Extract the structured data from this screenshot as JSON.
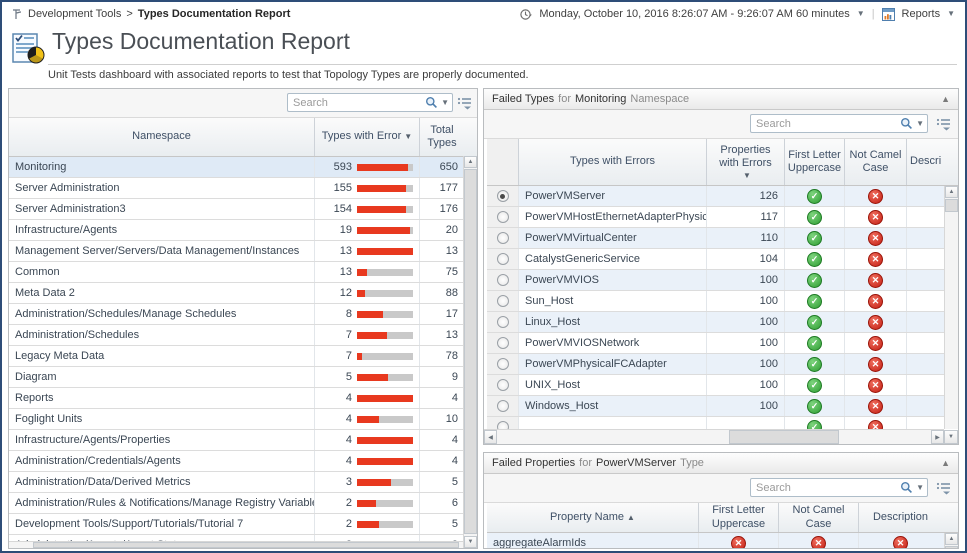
{
  "icons": {
    "sort_desc": "▼",
    "sort_asc": "▲",
    "collapse": "▲",
    "dropdown_caret": "▼",
    "up": "▲",
    "down": "▼",
    "left": "◀",
    "right": "▶"
  },
  "topbar": {
    "breadcrumb_root": "Development Tools",
    "breadcrumb_sep": ">",
    "breadcrumb_current": "Types Documentation Report",
    "time_range": "Monday, October 10, 2016 8:26:07 AM - 9:26:07 AM 60 minutes",
    "reports_label": "Reports"
  },
  "header": {
    "title": "Types Documentation Report",
    "subtitle": "Unit Tests dashboard with associated reports to test that Topology Types are properly documented."
  },
  "namespace_table": {
    "search_placeholder": "Search",
    "columns": {
      "namespace": "Namespace",
      "errors": "Types with Error",
      "total": "Total Types"
    },
    "sort_column": "errors",
    "sort_dir": "desc",
    "selected_row": "Monitoring",
    "rows": [
      {
        "namespace": "Monitoring",
        "errors": 593,
        "total": 650
      },
      {
        "namespace": "Server Administration",
        "errors": 155,
        "total": 177
      },
      {
        "namespace": "Server Administration3",
        "errors": 154,
        "total": 176
      },
      {
        "namespace": "Infrastructure/Agents",
        "errors": 19,
        "total": 20
      },
      {
        "namespace": "Management Server/Servers/Data Management/Instances",
        "errors": 13,
        "total": 13
      },
      {
        "namespace": "Common",
        "errors": 13,
        "total": 75
      },
      {
        "namespace": "Meta Data 2",
        "errors": 12,
        "total": 88
      },
      {
        "namespace": "Administration/Schedules/Manage Schedules",
        "errors": 8,
        "total": 17
      },
      {
        "namespace": "Administration/Schedules",
        "errors": 7,
        "total": 13
      },
      {
        "namespace": "Legacy Meta Data",
        "errors": 7,
        "total": 78
      },
      {
        "namespace": "Diagram",
        "errors": 5,
        "total": 9
      },
      {
        "namespace": "Reports",
        "errors": 4,
        "total": 4
      },
      {
        "namespace": "Foglight Units",
        "errors": 4,
        "total": 10
      },
      {
        "namespace": "Infrastructure/Agents/Properties",
        "errors": 4,
        "total": 4
      },
      {
        "namespace": "Administration/Credentials/Agents",
        "errors": 4,
        "total": 4
      },
      {
        "namespace": "Administration/Data/Derived Metrics",
        "errors": 3,
        "total": 5
      },
      {
        "namespace": "Administration/Rules & Notifications/Manage Registry Variables",
        "errors": 2,
        "total": 6
      },
      {
        "namespace": "Development Tools/Support/Tutorials/Tutorial 7",
        "errors": 2,
        "total": 5
      },
      {
        "namespace": "Administration/Agents/Agent Status",
        "errors": 2,
        "total": 3
      }
    ]
  },
  "failed_types": {
    "title": {
      "prefix": "Failed Types",
      "for_word": "for",
      "param": "Monitoring",
      "suffix": "Namespace"
    },
    "search_placeholder": "Search",
    "columns": {
      "type": "Types with Errors",
      "props": "Properties with Errors",
      "first": "First Letter Uppercase",
      "camel": "Not Camel Case",
      "desc": "Description"
    },
    "sort_column": "props",
    "sort_dir": "desc",
    "selected_row": "PowerVMServer",
    "rows": [
      {
        "name": "PowerVMServer",
        "props": 126,
        "first": "pass",
        "camel": "fail"
      },
      {
        "name": "PowerVMHostEthernetAdapterPhysicalPort",
        "props": 117,
        "first": "pass",
        "camel": "fail"
      },
      {
        "name": "PowerVMVirtualCenter",
        "props": 110,
        "first": "pass",
        "camel": "fail"
      },
      {
        "name": "CatalystGenericService",
        "props": 104,
        "first": "pass",
        "camel": "fail"
      },
      {
        "name": "PowerVMVIOS",
        "props": 100,
        "first": "pass",
        "camel": "fail"
      },
      {
        "name": "Sun_Host",
        "props": 100,
        "first": "pass",
        "camel": "fail"
      },
      {
        "name": "Linux_Host",
        "props": 100,
        "first": "pass",
        "camel": "fail"
      },
      {
        "name": "PowerVMVIOSNetwork",
        "props": 100,
        "first": "pass",
        "camel": "fail"
      },
      {
        "name": "PowerVMPhysicalFCAdapter",
        "props": 100,
        "first": "pass",
        "camel": "fail"
      },
      {
        "name": "UNIX_Host",
        "props": 100,
        "first": "pass",
        "camel": "fail"
      },
      {
        "name": "Windows_Host",
        "props": 100,
        "first": "pass",
        "camel": "fail"
      }
    ],
    "partial_row": {
      "name": "",
      "props": "",
      "first": "pass",
      "camel": "fail"
    }
  },
  "failed_properties": {
    "title": {
      "prefix": "Failed Properties",
      "for_word": "for",
      "param": "PowerVMServer",
      "suffix": "Type"
    },
    "search_placeholder": "Search",
    "columns": {
      "name": "Property Name",
      "first": "First Letter Uppercase",
      "camel": "Not Camel Case",
      "desc": "Description"
    },
    "sort_column": "name",
    "sort_dir": "asc",
    "rows": [
      {
        "name": "aggregateAlarmIds",
        "first": "fail",
        "camel": "fail",
        "desc": "fail"
      }
    ]
  },
  "colors": {
    "page_border": "#2e4d78",
    "bar_red": "#e8391f",
    "bar_track": "#c9c9c9",
    "pass_green": "#2f9e33",
    "fail_red": "#c41f14",
    "selected_row": "#dfeaf6",
    "alt_row": "#eaf1f9"
  }
}
